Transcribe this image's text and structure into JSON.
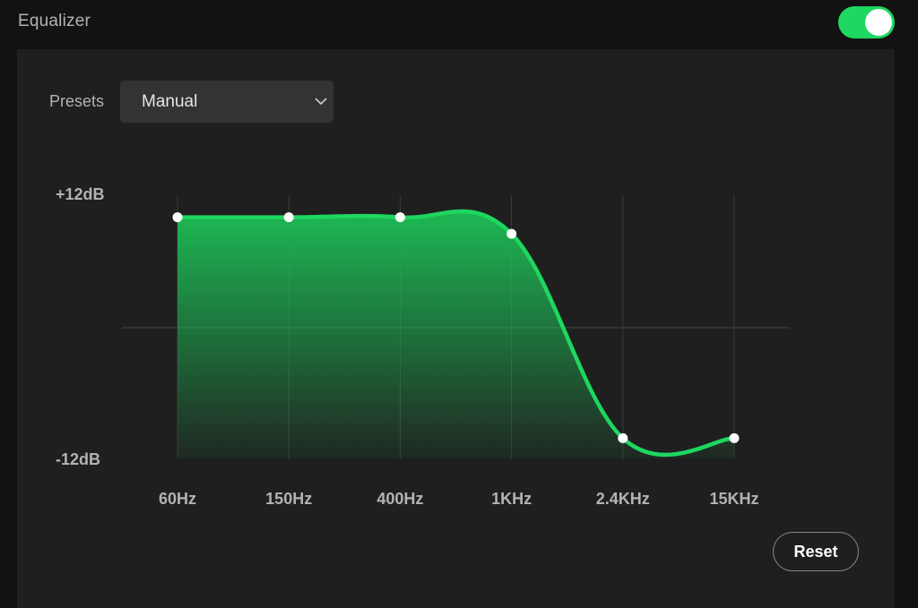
{
  "header": {
    "title": "Equalizer",
    "toggle_on": true,
    "accent_color": "#1ed760"
  },
  "presets": {
    "label": "Presets",
    "selected": "Manual",
    "icon": "chevron-down-icon"
  },
  "axis": {
    "max_label": "+12dB",
    "min_label": "-12dB"
  },
  "chart_data": {
    "type": "area",
    "x": [
      "60Hz",
      "150Hz",
      "400Hz",
      "1KHz",
      "2.4KHz",
      "15KHz"
    ],
    "series": [
      {
        "values": [
          10,
          10,
          10,
          8.5,
          -10,
          -10
        ]
      }
    ],
    "ylim": [
      -12,
      12
    ],
    "ylabel_top": "+12dB",
    "ylabel_bottom": "-12dB",
    "grid": true,
    "color": "#1ed760"
  },
  "actions": {
    "reset_label": "Reset"
  }
}
